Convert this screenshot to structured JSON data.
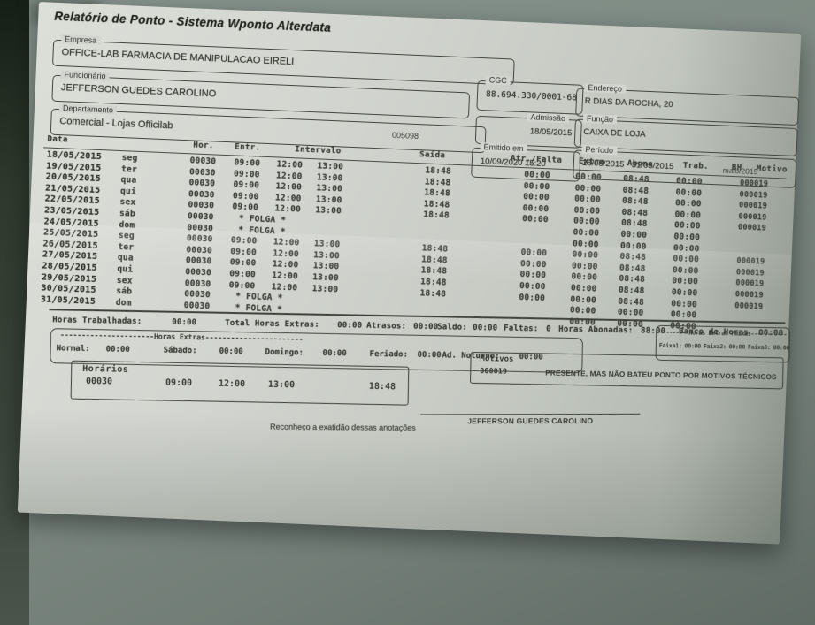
{
  "photo": {
    "wall_color": "#7e8b84",
    "wall_edge_color": "#2e382c",
    "paper_color": "#d2d5cf",
    "ink_color": "#3a3d36"
  },
  "report": {
    "title": "Relatório de Ponto -   Sistema Wponto Alterdata",
    "fields": {
      "empresa_label": "Empresa",
      "empresa": "OFFICE-LAB FARMACIA DE MANIPULACAO EIRELI",
      "funcionario_label": "Funcionário",
      "funcionario": "JEFFERSON GUEDES CAROLINO",
      "departamento_label": "Departamento",
      "departamento": "Comercial - Lojas Officilab",
      "departamento_codigo": "005098",
      "cgc_label": "CGC",
      "cgc": "88.694.330/0001-68",
      "endereco_label": "Endereço",
      "endereco": "R DIAS DA ROCHA, 20",
      "admissao_label": "Admissão",
      "admissao": "18/05/2015",
      "funcao_label": "Função",
      "funcao": "CAIXA DE LOJA",
      "emitido_label": "Emitido em",
      "emitido": "10/09/2020 15:20",
      "periodo_label": "Período",
      "periodo": "18/05/2015 - 31/05/2015",
      "periodo_mes": "maio/2015"
    },
    "table": {
      "headers": [
        {
          "key": "data",
          "label": "Data"
        },
        {
          "key": "hor",
          "label": "Hor."
        },
        {
          "key": "entr",
          "label": "Entr."
        },
        {
          "key": "intervalo",
          "label": "Intervalo"
        },
        {
          "key": "saida",
          "label": "Saída"
        },
        {
          "key": "atr",
          "label": "Atr./Falta"
        },
        {
          "key": "extra",
          "label": "Extra"
        },
        {
          "key": "abono",
          "label": "Abono"
        },
        {
          "key": "trab",
          "label": "Trab."
        },
        {
          "key": "bh",
          "label": "BH"
        },
        {
          "key": "motivo",
          "label": "Motivo"
        }
      ],
      "rows": [
        {
          "data": "18/05/2015",
          "dia": "seg",
          "hor": "00030",
          "entr": "09:00",
          "int1": "12:00",
          "int2": "13:00",
          "saida": "18:48",
          "atr": "00:00",
          "extra": "00:00",
          "abono": "08:48",
          "trab": "00:00",
          "bh": "",
          "motivo": "000019",
          "folga": false
        },
        {
          "data": "19/05/2015",
          "dia": "ter",
          "hor": "00030",
          "entr": "09:00",
          "int1": "12:00",
          "int2": "13:00",
          "saida": "18:48",
          "atr": "00:00",
          "extra": "00:00",
          "abono": "08:48",
          "trab": "00:00",
          "bh": "",
          "motivo": "000019",
          "folga": false
        },
        {
          "data": "20/05/2015",
          "dia": "qua",
          "hor": "00030",
          "entr": "09:00",
          "int1": "12:00",
          "int2": "13:00",
          "saida": "18:48",
          "atr": "00:00",
          "extra": "00:00",
          "abono": "08:48",
          "trab": "00:00",
          "bh": "",
          "motivo": "000019",
          "folga": false
        },
        {
          "data": "21/05/2015",
          "dia": "qui",
          "hor": "00030",
          "entr": "09:00",
          "int1": "12:00",
          "int2": "13:00",
          "saida": "18:48",
          "atr": "00:00",
          "extra": "00:00",
          "abono": "08:48",
          "trab": "00:00",
          "bh": "",
          "motivo": "000019",
          "folga": false
        },
        {
          "data": "22/05/2015",
          "dia": "sex",
          "hor": "00030",
          "entr": "09:00",
          "int1": "12:00",
          "int2": "13:00",
          "saida": "18:48",
          "atr": "00:00",
          "extra": "00:00",
          "abono": "08:48",
          "trab": "00:00",
          "bh": "",
          "motivo": "000019",
          "folga": false
        },
        {
          "data": "23/05/2015",
          "dia": "sáb",
          "hor": "00030",
          "folga": true,
          "folga_text": "* FOLGA *",
          "extra": "00:00",
          "abono": "00:00",
          "trab": "00:00"
        },
        {
          "data": "24/05/2015",
          "dia": "dom",
          "hor": "00030",
          "folga": true,
          "folga_text": "* FOLGA *",
          "extra": "00:00",
          "abono": "00:00",
          "trab": "00:00"
        },
        {
          "data": "25/05/2015",
          "dia": "seg",
          "hor": "00030",
          "entr": "09:00",
          "int1": "12:00",
          "int2": "13:00",
          "saida": "18:48",
          "atr": "00:00",
          "extra": "00:00",
          "abono": "08:48",
          "trab": "00:00",
          "bh": "",
          "motivo": "000019",
          "folga": false
        },
        {
          "data": "26/05/2015",
          "dia": "ter",
          "hor": "00030",
          "entr": "09:00",
          "int1": "12:00",
          "int2": "13:00",
          "saida": "18:48",
          "atr": "00:00",
          "extra": "00:00",
          "abono": "08:48",
          "trab": "00:00",
          "bh": "",
          "motivo": "000019",
          "folga": false
        },
        {
          "data": "27/05/2015",
          "dia": "qua",
          "hor": "00030",
          "entr": "09:00",
          "int1": "12:00",
          "int2": "13:00",
          "saida": "18:48",
          "atr": "00:00",
          "extra": "00:00",
          "abono": "08:48",
          "trab": "00:00",
          "bh": "",
          "motivo": "000019",
          "folga": false
        },
        {
          "data": "28/05/2015",
          "dia": "qui",
          "hor": "00030",
          "entr": "09:00",
          "int1": "12:00",
          "int2": "13:00",
          "saida": "18:48",
          "atr": "00:00",
          "extra": "00:00",
          "abono": "08:48",
          "trab": "00:00",
          "bh": "",
          "motivo": "000019",
          "folga": false
        },
        {
          "data": "29/05/2015",
          "dia": "sex",
          "hor": "00030",
          "entr": "09:00",
          "int1": "12:00",
          "int2": "13:00",
          "saida": "18:48",
          "atr": "00:00",
          "extra": "00:00",
          "abono": "08:48",
          "trab": "00:00",
          "bh": "",
          "motivo": "000019",
          "folga": false
        },
        {
          "data": "30/05/2015",
          "dia": "sáb",
          "hor": "00030",
          "folga": true,
          "folga_text": "* FOLGA *",
          "extra": "00:00",
          "abono": "00:00",
          "trab": "00:00"
        },
        {
          "data": "31/05/2015",
          "dia": "dom",
          "hor": "00030",
          "folga": true,
          "folga_text": "* FOLGA *",
          "extra": "00:00",
          "abono": "00:00",
          "trab": "00:00"
        }
      ]
    },
    "totals": [
      {
        "key": "ht",
        "label": "Horas Trabalhadas:",
        "value": "00:00"
      },
      {
        "key": "the",
        "label": "Total Horas Extras:",
        "value": "00:00"
      },
      {
        "key": "atr",
        "label": "Atrasos:",
        "value": "00:00"
      },
      {
        "key": "sal",
        "label": "Saldo:",
        "value": "00:00"
      },
      {
        "key": "fal",
        "label": "Faltas:",
        "value": "0"
      },
      {
        "key": "ha",
        "label": "Horas Abonadas:",
        "value": "88:00"
      },
      {
        "key": "bdh",
        "label": "Banco de Horas",
        "value": "00:00"
      }
    ],
    "horas_extras": {
      "dashes": "----------------------Horas Extras-----------------------",
      "items": [
        {
          "key": "normal",
          "label": "Normal:",
          "value": "00:00"
        },
        {
          "key": "sab",
          "label": "Sábado:",
          "value": "00:00"
        },
        {
          "key": "dom",
          "label": "Domingo:",
          "value": "00:00"
        },
        {
          "key": "fer",
          "label": "Feriado:",
          "value": "00:00"
        },
        {
          "key": "adn",
          "label": "Ad. Noturno:",
          "value": "00:00"
        }
      ]
    },
    "faixas": {
      "dashes": "---------Horas Extras Faixas-----------",
      "items": [
        {
          "label": "Faixa1:",
          "value": "00:00"
        },
        {
          "label": "Faixa2:",
          "value": "00:00"
        },
        {
          "label": "Faixa3:",
          "value": "00:00"
        }
      ]
    },
    "horarios": {
      "label": "Horários",
      "codigo": "00030",
      "entrada": "09:00",
      "saida_intervalo": "12:00",
      "retorno": "13:00",
      "saida": "18:48"
    },
    "motivos": {
      "label": "Motivos",
      "codigo": "000019",
      "descricao": "PRESENTE, MAS NÃO BATEU PONTO POR MOTIVOS TÉCNICOS"
    },
    "assinatura": {
      "texto": "Reconheço a exatidão dessas anotações",
      "nome": "JEFFERSON GUEDES CAROLINO"
    }
  }
}
